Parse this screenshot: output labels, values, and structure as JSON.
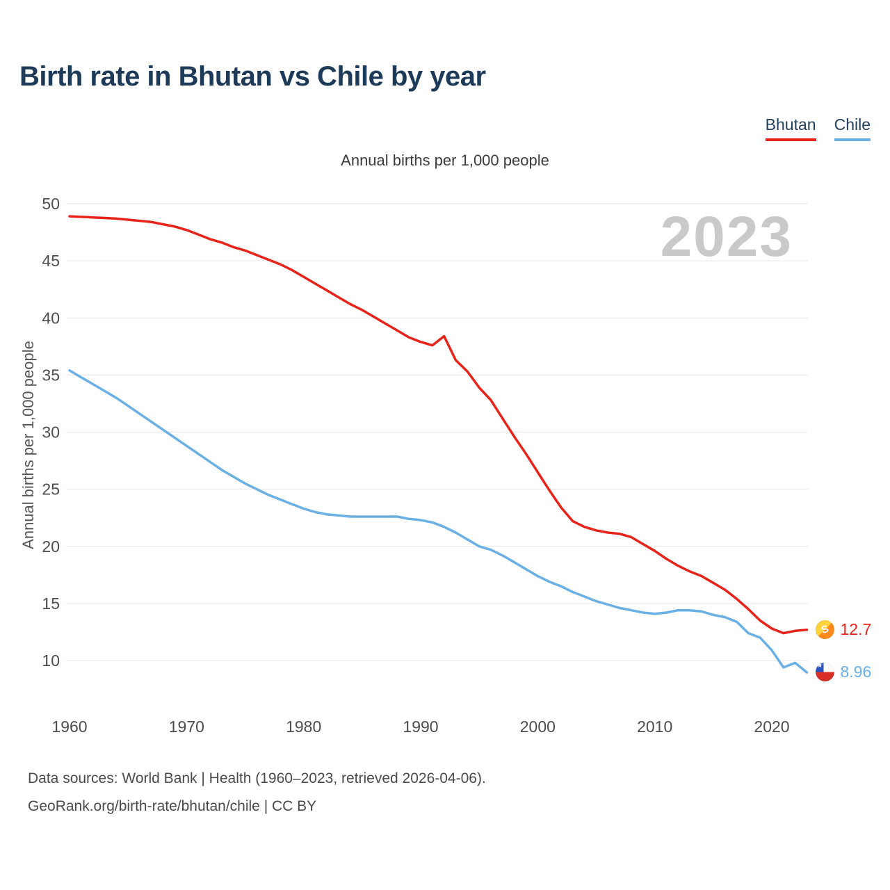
{
  "title": "Birth rate in Bhutan vs Chile by year",
  "watermark": "2023",
  "legend": [
    {
      "label": "Bhutan",
      "color": "#e8231a"
    },
    {
      "label": "Chile",
      "color": "#6ab0e4"
    }
  ],
  "chart_data": {
    "type": "line",
    "title": "Birth rate in Bhutan vs Chile by year",
    "subtitle": "Annual births per 1,000 people",
    "ylabel": "Annual births per 1,000 people",
    "xlabel": "",
    "grid": "horizontal",
    "legend_position": "top-right",
    "ylim": [
      8,
      51
    ],
    "xlim": [
      1960,
      2023
    ],
    "y_ticks": [
      10,
      15,
      20,
      25,
      30,
      35,
      40,
      45,
      50
    ],
    "x_ticks": [
      1960,
      1970,
      1980,
      1990,
      2000,
      2010,
      2020
    ],
    "x": [
      1960,
      1961,
      1962,
      1963,
      1964,
      1965,
      1966,
      1967,
      1968,
      1969,
      1970,
      1971,
      1972,
      1973,
      1974,
      1975,
      1976,
      1977,
      1978,
      1979,
      1980,
      1981,
      1982,
      1983,
      1984,
      1985,
      1986,
      1987,
      1988,
      1989,
      1990,
      1991,
      1992,
      1993,
      1994,
      1995,
      1996,
      1997,
      1998,
      1999,
      2000,
      2001,
      2002,
      2003,
      2004,
      2005,
      2006,
      2007,
      2008,
      2009,
      2010,
      2011,
      2012,
      2013,
      2014,
      2015,
      2016,
      2017,
      2018,
      2019,
      2020,
      2021,
      2022,
      2023
    ],
    "series": [
      {
        "name": "Bhutan",
        "color": "#e8231a",
        "values": [
          48.9,
          48.85,
          48.8,
          48.75,
          48.7,
          48.6,
          48.5,
          48.4,
          48.2,
          48.0,
          47.7,
          47.3,
          46.9,
          46.6,
          46.2,
          45.9,
          45.5,
          45.1,
          44.7,
          44.2,
          43.6,
          43.0,
          42.4,
          41.8,
          41.2,
          40.7,
          40.1,
          39.5,
          38.9,
          38.3,
          37.9,
          37.6,
          38.4,
          36.3,
          35.3,
          33.9,
          32.8,
          31.2,
          29.6,
          28.1,
          26.5,
          24.9,
          23.4,
          22.2,
          21.7,
          21.4,
          21.2,
          21.1,
          20.8,
          20.2,
          19.6,
          18.9,
          18.3,
          17.8,
          17.4,
          16.8,
          16.2,
          15.4,
          14.5,
          13.5,
          12.8,
          12.4,
          12.6,
          12.7
        ]
      },
      {
        "name": "Chile",
        "color": "#6ab0e4",
        "values": [
          35.4,
          34.8,
          34.2,
          33.6,
          33.0,
          32.3,
          31.6,
          30.9,
          30.2,
          29.5,
          28.8,
          28.1,
          27.4,
          26.7,
          26.1,
          25.5,
          25.0,
          24.5,
          24.1,
          23.7,
          23.3,
          23.0,
          22.8,
          22.7,
          22.6,
          22.6,
          22.6,
          22.6,
          22.6,
          22.4,
          22.3,
          22.1,
          21.7,
          21.2,
          20.6,
          20.0,
          19.7,
          19.2,
          18.6,
          18.0,
          17.4,
          16.9,
          16.5,
          16.0,
          15.6,
          15.2,
          14.9,
          14.6,
          14.4,
          14.2,
          14.1,
          14.2,
          14.4,
          14.4,
          14.3,
          14.0,
          13.8,
          13.4,
          12.4,
          12.0,
          10.9,
          9.4,
          9.8,
          8.96
        ]
      }
    ],
    "end_labels": {
      "bhutan": "12.7",
      "chile": "8.96"
    }
  },
  "footer": {
    "line1": "Data sources: World Bank | Health (1960–2023, retrieved 2026-04-06).",
    "line2": "GeoRank.org/birth-rate/bhutan/chile | CC BY"
  }
}
